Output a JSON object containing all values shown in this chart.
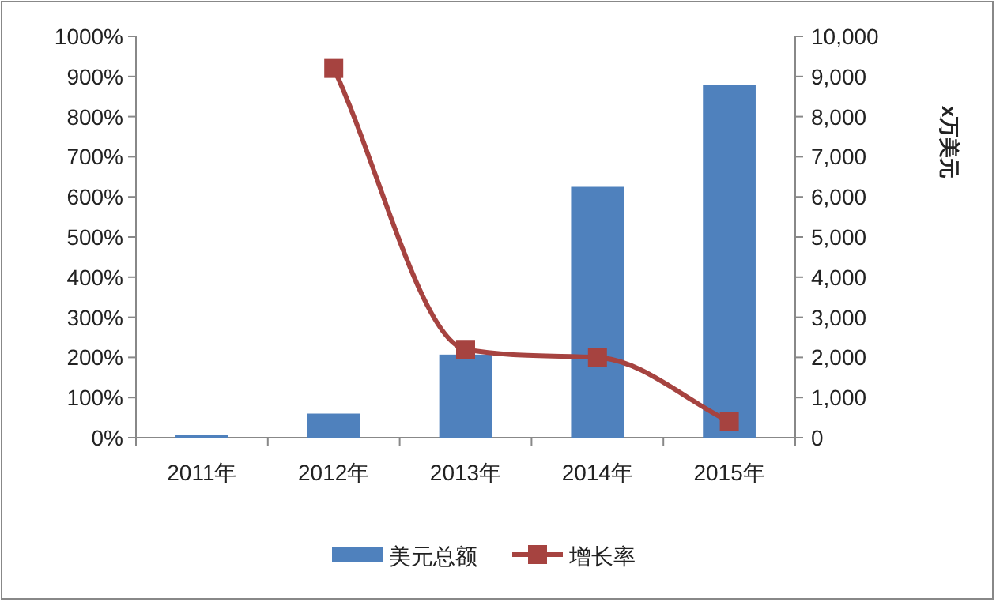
{
  "chart_data": {
    "type": "bar",
    "categories": [
      "2011年",
      "2012年",
      "2013年",
      "2014年",
      "2015年"
    ],
    "y2label": "x万美元",
    "ylim": [
      0,
      1000
    ],
    "yticks": [
      {
        "value": 0,
        "label": "0%"
      },
      {
        "value": 100,
        "label": "100%"
      },
      {
        "value": 200,
        "label": "200%"
      },
      {
        "value": 300,
        "label": "300%"
      },
      {
        "value": 400,
        "label": "400%"
      },
      {
        "value": 500,
        "label": "500%"
      },
      {
        "value": 600,
        "label": "600%"
      },
      {
        "value": 700,
        "label": "700%"
      },
      {
        "value": 800,
        "label": "800%"
      },
      {
        "value": 900,
        "label": "900%"
      },
      {
        "value": 1000,
        "label": "1000%"
      }
    ],
    "y2lim": [
      0,
      10000
    ],
    "y2ticks": [
      0,
      {
        "value": 1000,
        "label": "1,000"
      },
      {
        "value": 2000,
        "label": "2,000"
      },
      {
        "value": 3000,
        "label": "3,000"
      },
      {
        "value": 4000,
        "label": "4,000"
      },
      {
        "value": 5000,
        "label": "5,000"
      },
      {
        "value": 6000,
        "label": "6,000"
      },
      {
        "value": 7000,
        "label": "7,000"
      },
      {
        "value": 8000,
        "label": "8,000"
      },
      {
        "value": 9000,
        "label": "9,000"
      },
      {
        "value": 10000,
        "label": "10,000"
      }
    ],
    "marker": "square",
    "legend": "bottom",
    "grid": false,
    "series": [
      {
        "name": "美元总额",
        "axis": "y2",
        "color": "#4f81bd",
        "values": [
          70,
          600,
          2070,
          6250,
          8780
        ]
      },
      {
        "name": "增长率",
        "type": "line",
        "axis": "y",
        "color": "#a64340",
        "values": [
          null,
          920,
          220,
          200,
          40
        ]
      }
    ]
  }
}
